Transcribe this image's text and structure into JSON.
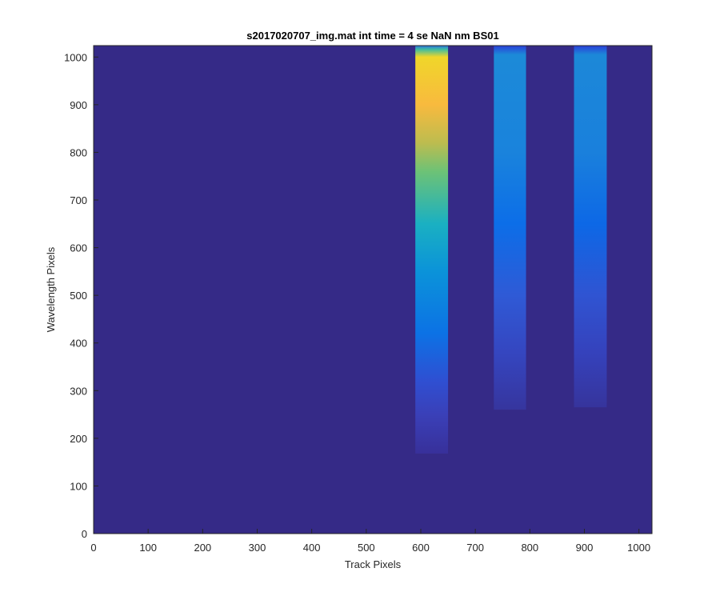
{
  "chart_data": {
    "type": "image",
    "title": "s2017020707_img.mat int time = 4 se  NaN nm BS01",
    "xlabel": "Track Pixels",
    "ylabel": "Wavelength Pixels",
    "xlim": [
      0,
      1024
    ],
    "ylim": [
      0,
      1024
    ],
    "xticks": [
      0,
      100,
      200,
      300,
      400,
      500,
      600,
      700,
      800,
      900,
      1000
    ],
    "yticks": [
      0,
      100,
      200,
      300,
      400,
      500,
      600,
      700,
      800,
      900,
      1000
    ],
    "background": "#352a87",
    "bands": [
      {
        "x": [
          590,
          650
        ],
        "y": [
          168,
          1024
        ],
        "stops": [
          {
            "y": 1024,
            "color": "#2a6fe0"
          },
          {
            "y": 1016,
            "color": "#3fbca0"
          },
          {
            "y": 1000,
            "color": "#f0d62a"
          },
          {
            "y": 900,
            "color": "#f8ba3e"
          },
          {
            "y": 820,
            "color": "#bdbc4f"
          },
          {
            "y": 760,
            "color": "#6dc276"
          },
          {
            "y": 650,
            "color": "#1ab0c2"
          },
          {
            "y": 550,
            "color": "#0b93d9"
          },
          {
            "y": 420,
            "color": "#0c72e5"
          },
          {
            "y": 320,
            "color": "#2f4fd2"
          },
          {
            "y": 250,
            "color": "#3a40b8"
          },
          {
            "y": 168,
            "color": "#38309a"
          }
        ]
      },
      {
        "x": [
          734,
          793
        ],
        "y": [
          260,
          1024
        ],
        "stops": [
          {
            "y": 1024,
            "color": "#2a3fd8"
          },
          {
            "y": 1005,
            "color": "#1c8ad8"
          },
          {
            "y": 800,
            "color": "#1a83dc"
          },
          {
            "y": 650,
            "color": "#0c6ee8"
          },
          {
            "y": 500,
            "color": "#2f5ad6"
          },
          {
            "y": 380,
            "color": "#3546c0"
          },
          {
            "y": 260,
            "color": "#36359e"
          }
        ]
      },
      {
        "x": [
          881,
          941
        ],
        "y": [
          265,
          1024
        ],
        "stops": [
          {
            "y": 1024,
            "color": "#2a3fd8"
          },
          {
            "y": 1005,
            "color": "#1c88d8"
          },
          {
            "y": 800,
            "color": "#1a80dc"
          },
          {
            "y": 650,
            "color": "#0d68e6"
          },
          {
            "y": 500,
            "color": "#3054d2"
          },
          {
            "y": 380,
            "color": "#3542bc"
          },
          {
            "y": 265,
            "color": "#36349c"
          }
        ]
      }
    ]
  }
}
